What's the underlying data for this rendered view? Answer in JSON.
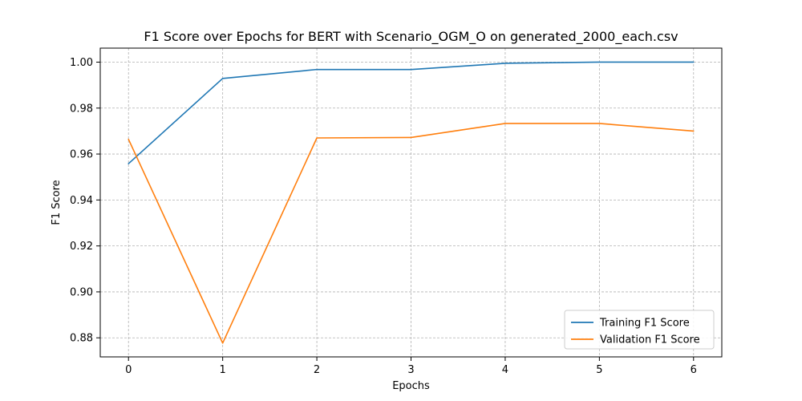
{
  "chart_data": {
    "type": "line",
    "title": "F1 Score over Epochs for BERT with Scenario_OGM_O on generated_2000_each.csv",
    "xlabel": "Epochs",
    "ylabel": "F1 Score",
    "x": [
      0,
      1,
      2,
      3,
      4,
      5,
      6
    ],
    "x_tick_labels": [
      "0",
      "1",
      "2",
      "3",
      "4",
      "5",
      "6"
    ],
    "y_tick_values": [
      0.88,
      0.9,
      0.92,
      0.94,
      0.96,
      0.98,
      1.0
    ],
    "y_tick_labels": [
      "0.88",
      "0.90",
      "0.92",
      "0.94",
      "0.96",
      "0.98",
      "1.00"
    ],
    "xlim": [
      -0.3,
      6.3
    ],
    "ylim": [
      0.8717,
      1.0061
    ],
    "grid": true,
    "grid_style": "dashed",
    "legend_position": "lower-right",
    "series": [
      {
        "name": "Training F1 Score",
        "color": "#1f77b4",
        "values": [
          0.9558,
          0.9929,
          0.9968,
          0.9968,
          0.9995,
          1.0,
          1.0
        ]
      },
      {
        "name": "Validation F1 Score",
        "color": "#ff7f0e",
        "values": [
          0.9664,
          0.8777,
          0.967,
          0.9672,
          0.9733,
          0.9733,
          0.97
        ]
      }
    ]
  }
}
